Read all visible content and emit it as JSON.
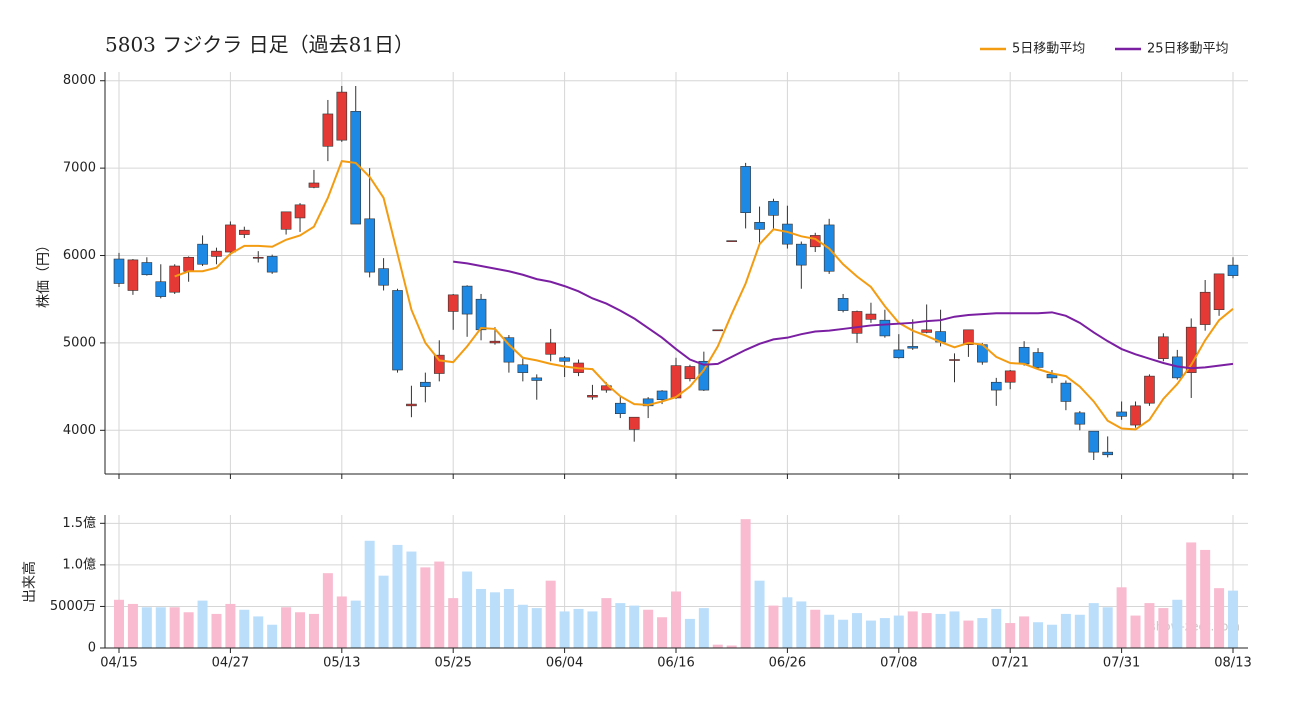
{
  "chart_data": [
    {
      "type": "candlestick",
      "title": "5803 フジクラ  日足（過去81日）",
      "ylabel": "株価（円）",
      "categories": [
        "04/15",
        null,
        null,
        null,
        null,
        null,
        null,
        null,
        "04/27",
        null,
        null,
        null,
        null,
        null,
        null,
        null,
        "05/13",
        null,
        null,
        null,
        null,
        null,
        null,
        null,
        "05/25",
        null,
        null,
        null,
        null,
        null,
        null,
        null,
        "06/04",
        null,
        null,
        null,
        null,
        null,
        null,
        null,
        "06/16",
        null,
        null,
        null,
        null,
        null,
        null,
        null,
        "06/26",
        null,
        null,
        null,
        null,
        null,
        null,
        null,
        "07/08",
        null,
        null,
        null,
        null,
        null,
        null,
        null,
        "07/21",
        null,
        null,
        null,
        null,
        null,
        null,
        null,
        "07/31",
        null,
        null,
        null,
        null,
        null,
        null,
        null,
        "08/13"
      ],
      "open": [
        5960,
        5600,
        5920,
        5700,
        5580,
        5820,
        6130,
        5990,
        6040,
        6240,
        5970,
        5990,
        6300,
        6430,
        6780,
        7250,
        7320,
        7650,
        6420,
        5850,
        5600,
        4280,
        4550,
        4650,
        5360,
        5650,
        5500,
        5000,
        5060,
        4750,
        4600,
        4870,
        4830,
        4660,
        4380,
        4460,
        4310,
        4010,
        4360,
        4450,
        4370,
        4590,
        4790,
        5150,
        6170,
        7020,
        6380,
        6620,
        6360,
        6130,
        6100,
        6350,
        5510,
        5110,
        5270,
        5260,
        4920,
        4960,
        5120,
        5130,
        4800,
        4980,
        4980,
        4550,
        4550,
        4950,
        4890,
        4640,
        4540,
        4200,
        3990,
        3750,
        4210,
        4060,
        4310,
        4820,
        4840,
        4660,
        5210,
        5380,
        5890
      ],
      "high": [
        6030,
        5960,
        5980,
        5900,
        5900,
        5990,
        6230,
        6090,
        6390,
        6330,
        6050,
        6010,
        6500,
        6600,
        6980,
        7780,
        7940,
        7940,
        7000,
        5970,
        5620,
        4510,
        4660,
        5030,
        5560,
        5660,
        5560,
        5180,
        5090,
        4820,
        4640,
        5160,
        4850,
        4810,
        4520,
        4550,
        4390,
        4150,
        4380,
        4460,
        4830,
        4750,
        4900,
        5150,
        6170,
        7060,
        6560,
        6650,
        6570,
        6160,
        6260,
        6420,
        5560,
        5370,
        5460,
        5380,
        5100,
        5270,
        5440,
        5380,
        4880,
        5150,
        5000,
        4600,
        4690,
        5020,
        4940,
        4690,
        4570,
        4220,
        3990,
        3930,
        4330,
        4330,
        4640,
        5110,
        4920,
        5280,
        5720,
        5790,
        5980
      ],
      "low": [
        5640,
        5550,
        5770,
        5510,
        5560,
        5700,
        5880,
        5900,
        6000,
        6200,
        5920,
        5790,
        6240,
        6270,
        6770,
        7080,
        7300,
        6360,
        5750,
        5600,
        4660,
        4150,
        4320,
        4560,
        5150,
        5070,
        5030,
        4980,
        4660,
        4560,
        4350,
        4790,
        4610,
        4620,
        4350,
        4430,
        4140,
        3870,
        4140,
        4300,
        4360,
        4560,
        4450,
        5150,
        6170,
        6310,
        6150,
        6290,
        6080,
        5620,
        6040,
        5790,
        5350,
        5000,
        5230,
        5060,
        4820,
        4920,
        5110,
        4960,
        4550,
        4840,
        4750,
        4280,
        4470,
        4740,
        4700,
        4540,
        4230,
        4000,
        3660,
        3690,
        4120,
        4030,
        4280,
        4790,
        4580,
        4370,
        5140,
        5310,
        5740
      ],
      "close": [
        5680,
        5950,
        5780,
        5530,
        5880,
        5980,
        5900,
        6050,
        6350,
        6290,
        5980,
        5810,
        6500,
        6580,
        6830,
        7620,
        7870,
        6360,
        5810,
        5660,
        4690,
        4300,
        4500,
        4860,
        5550,
        5330,
        5150,
        5020,
        4780,
        4660,
        4570,
        5000,
        4790,
        4770,
        4400,
        4510,
        4190,
        4150,
        4280,
        4350,
        4740,
        4730,
        4460,
        5150,
        6170,
        6490,
        6300,
        6460,
        6130,
        5890,
        6230,
        5820,
        5370,
        5360,
        5330,
        5080,
        4830,
        4940,
        5150,
        5010,
        4810,
        5150,
        4780,
        4460,
        4680,
        4760,
        4720,
        4600,
        4330,
        4070,
        3750,
        3720,
        4160,
        4280,
        4620,
        5070,
        4600,
        5180,
        5580,
        5790,
        5770
      ],
      "up_color": "#e53935",
      "down_color": "#1e88e5",
      "series": [
        {
          "name": "5日移動平均",
          "color": "#f39c12",
          "values": [
            null,
            null,
            null,
            null,
            5760,
            5820,
            5820,
            5860,
            6020,
            6110,
            6110,
            6100,
            6180,
            6230,
            6330,
            6660,
            7080,
            7060,
            6900,
            6660,
            6020,
            5380,
            5000,
            4800,
            4780,
            4960,
            5170,
            5160,
            4980,
            4830,
            4800,
            4760,
            4730,
            4710,
            4700,
            4530,
            4390,
            4300,
            4290,
            4330,
            4380,
            4500,
            4690,
            4960,
            5330,
            5680,
            6130,
            6300,
            6270,
            6220,
            6190,
            6080,
            5900,
            5760,
            5640,
            5420,
            5230,
            5140,
            5080,
            5010,
            4950,
            5000,
            4980,
            4840,
            4770,
            4760,
            4700,
            4650,
            4620,
            4500,
            4330,
            4110,
            4020,
            4010,
            4120,
            4360,
            4530,
            4750,
            5030,
            5260,
            5390
          ]
        },
        {
          "name": "25日移動平均",
          "color": "#7b1fa2",
          "values": [
            null,
            null,
            null,
            null,
            null,
            null,
            null,
            null,
            null,
            null,
            null,
            null,
            null,
            null,
            null,
            null,
            null,
            null,
            null,
            null,
            null,
            null,
            null,
            null,
            5930,
            5910,
            5880,
            5850,
            5820,
            5780,
            5730,
            5700,
            5650,
            5590,
            5510,
            5450,
            5370,
            5280,
            5170,
            5060,
            4930,
            4810,
            4750,
            4760,
            4840,
            4920,
            4990,
            5040,
            5060,
            5100,
            5130,
            5140,
            5160,
            5180,
            5200,
            5210,
            5220,
            5230,
            5250,
            5260,
            5300,
            5320,
            5330,
            5340,
            5340,
            5340,
            5340,
            5350,
            5310,
            5230,
            5120,
            5020,
            4930,
            4870,
            4820,
            4770,
            4730,
            4710,
            4720,
            4740,
            4760
          ]
        }
      ],
      "ylim": [
        3500,
        8100
      ],
      "yticks": [
        4000,
        5000,
        6000,
        7000,
        8000
      ],
      "grid": true,
      "legend": "top-right"
    },
    {
      "type": "bar",
      "ylabel": "出来高",
      "values": [
        58000000,
        53000000,
        49000000,
        49000000,
        49000000,
        43000000,
        57000000,
        41000000,
        53000000,
        46000000,
        38000000,
        28000000,
        49000000,
        43000000,
        41000000,
        90000000,
        62000000,
        57000000,
        129000000,
        87000000,
        124000000,
        116000000,
        97000000,
        104000000,
        60000000,
        92000000,
        71000000,
        67000000,
        71000000,
        52000000,
        48000000,
        81000000,
        44000000,
        47000000,
        44000000,
        60000000,
        54000000,
        51000000,
        46000000,
        37000000,
        68000000,
        35000000,
        48000000,
        4000000,
        3000000,
        155000000,
        81000000,
        51000000,
        61000000,
        56000000,
        46000000,
        40000000,
        34000000,
        42000000,
        33000000,
        36000000,
        39000000,
        44000000,
        42000000,
        41000000,
        44000000,
        33000000,
        36000000,
        47000000,
        30000000,
        38000000,
        31000000,
        28000000,
        41000000,
        40000000,
        54000000,
        49000000,
        73000000,
        39000000,
        54000000,
        48000000,
        58000000,
        127000000,
        118000000,
        72000000,
        69000000
      ],
      "colors": [
        "#f8bbd0",
        "#f8bbd0",
        "#bbdefb",
        "#bbdefb",
        "#f8bbd0",
        "#f8bbd0",
        "#bbdefb",
        "#f8bbd0",
        "#f8bbd0",
        "#bbdefb",
        "#bbdefb",
        "#bbdefb",
        "#f8bbd0",
        "#f8bbd0",
        "#f8bbd0",
        "#f8bbd0",
        "#f8bbd0",
        "#bbdefb",
        "#bbdefb",
        "#bbdefb",
        "#bbdefb",
        "#bbdefb",
        "#f8bbd0",
        "#f8bbd0",
        "#f8bbd0",
        "#bbdefb",
        "#bbdefb",
        "#bbdefb",
        "#bbdefb",
        "#bbdefb",
        "#bbdefb",
        "#f8bbd0",
        "#bbdefb",
        "#bbdefb",
        "#bbdefb",
        "#f8bbd0",
        "#bbdefb",
        "#bbdefb",
        "#f8bbd0",
        "#f8bbd0",
        "#f8bbd0",
        "#bbdefb",
        "#bbdefb",
        "#f8bbd0",
        "#f8bbd0",
        "#f8bbd0",
        "#bbdefb",
        "#f8bbd0",
        "#bbdefb",
        "#bbdefb",
        "#f8bbd0",
        "#bbdefb",
        "#bbdefb",
        "#bbdefb",
        "#bbdefb",
        "#bbdefb",
        "#bbdefb",
        "#f8bbd0",
        "#f8bbd0",
        "#bbdefb",
        "#bbdefb",
        "#f8bbd0",
        "#bbdefb",
        "#bbdefb",
        "#f8bbd0",
        "#f8bbd0",
        "#bbdefb",
        "#bbdefb",
        "#bbdefb",
        "#bbdefb",
        "#bbdefb",
        "#bbdefb",
        "#f8bbd0",
        "#f8bbd0",
        "#f8bbd0",
        "#f8bbd0",
        "#bbdefb",
        "#f8bbd0",
        "#f8bbd0",
        "#f8bbd0",
        "#bbdefb"
      ],
      "ylim": [
        0,
        160000000
      ],
      "yticks": [
        0,
        {
          "value": 50000000,
          "label": "5000万"
        },
        {
          "value": 100000000,
          "label": "1.0億"
        },
        {
          "value": 150000000,
          "label": "1.5億"
        }
      ],
      "grid": true
    }
  ],
  "watermark": "show-zeet.com"
}
